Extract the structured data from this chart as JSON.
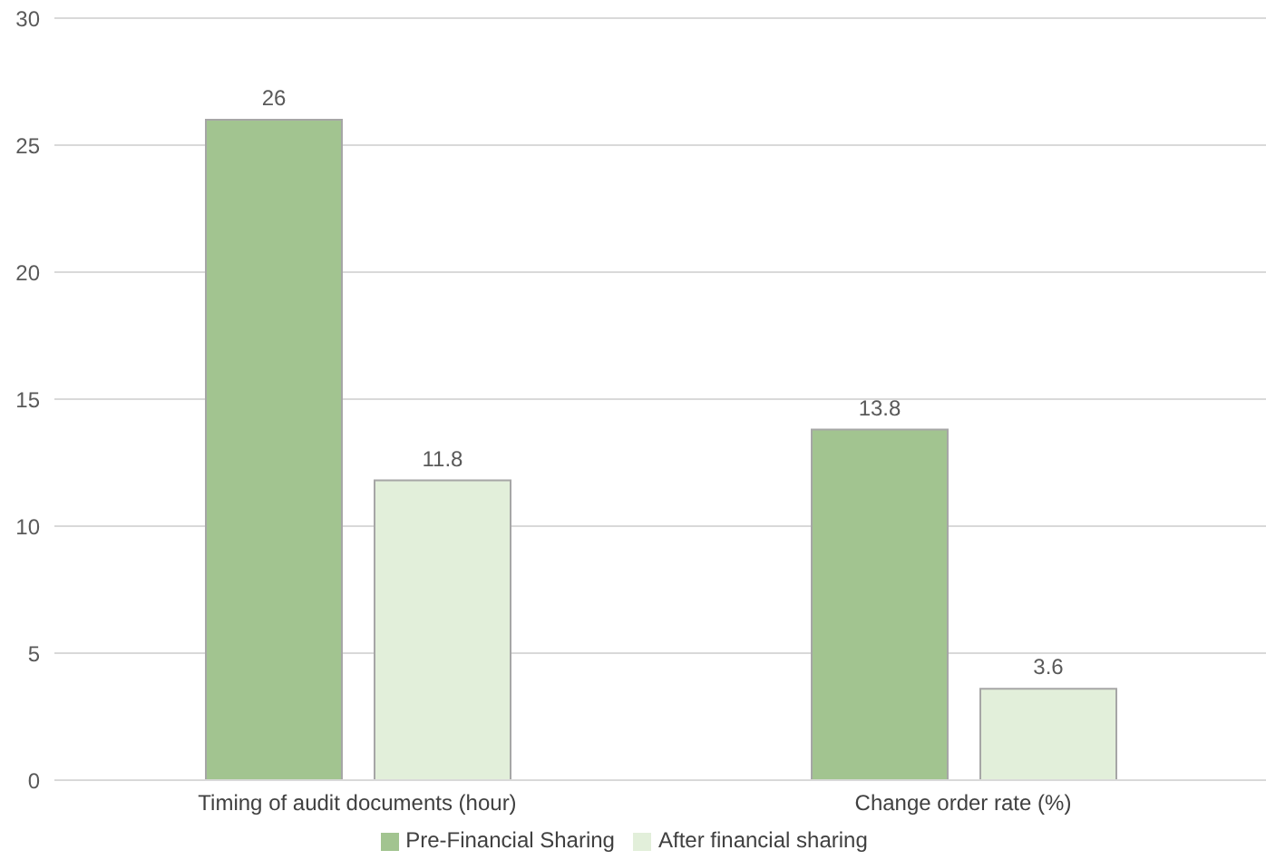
{
  "chart_data": {
    "type": "bar",
    "categories": [
      "Timing of audit documents (hour)",
      "Change order rate (%)"
    ],
    "series": [
      {
        "name": "Pre-Financial Sharing",
        "color": "#a2c490",
        "values": [
          26,
          13.8
        ]
      },
      {
        "name": "After financial sharing",
        "color": "#e2efda",
        "values": [
          11.8,
          3.6
        ]
      }
    ],
    "ylim": [
      0,
      30
    ],
    "yticks": [
      0,
      5,
      10,
      15,
      20,
      25,
      30
    ],
    "grid": "y",
    "legend": "bottom",
    "data_labels": true
  }
}
